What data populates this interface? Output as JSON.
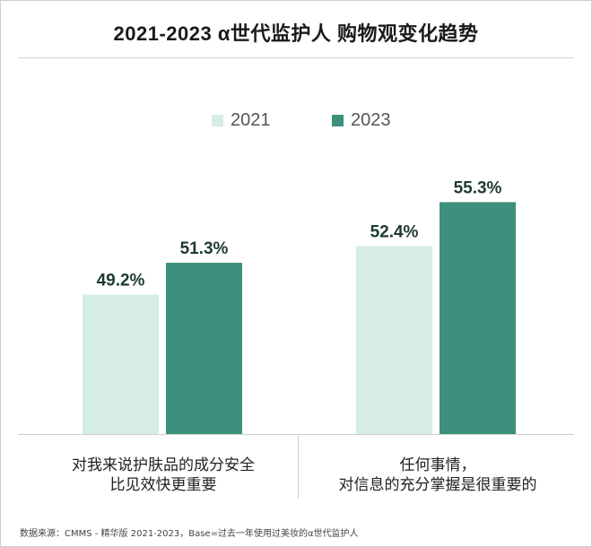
{
  "page": {
    "source_note": "数据来源：CMMS - 精华版 2021-2023，Base=过去一年使用过美妆的α世代监护人"
  },
  "chart_data": {
    "type": "bar",
    "title": "2021-2023 α世代监护人 购物观变化趋势",
    "categories": [
      {
        "line1": "对我来说护肤品的成分安全",
        "line2": "比见效快更重要"
      },
      {
        "line1": "任何事情，",
        "line2": "对信息的充分掌握是很重要的"
      }
    ],
    "series": [
      {
        "name": "2021",
        "color": "#d6ece6",
        "values": [
          49.2,
          52.4
        ],
        "labels": [
          "49.2%",
          "52.4%"
        ]
      },
      {
        "name": "2023",
        "color": "#3d907b",
        "values": [
          51.3,
          55.3
        ],
        "labels": [
          "51.3%",
          "55.3%"
        ]
      }
    ],
    "value_unit": "%",
    "legend_position": "top-center",
    "grid": false
  }
}
